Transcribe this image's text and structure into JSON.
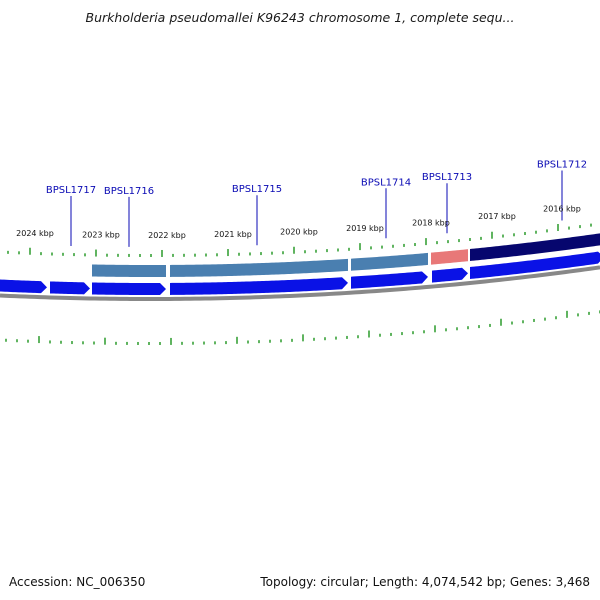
{
  "title": "Burkholderia pseudomallei K96243 chromosome 1, complete sequ...",
  "footer": {
    "accession": "Accession: NC_006350",
    "summary": "Topology: circular; Length: 4,074,542 bp; Genes: 3,468"
  },
  "scale_labels": [
    "2024 kbp",
    "2023 kbp",
    "2022 kbp",
    "2021 kbp",
    "2020 kbp",
    "2019 kbp",
    "2018 kbp",
    "2017 kbp",
    "2016 kbp"
  ],
  "gene_labels": [
    "BPSL1717",
    "BPSL1716",
    "BPSL1715",
    "BPSL1714",
    "BPSL1713",
    "BPSL1712"
  ],
  "colors": {
    "cds_arrow": "#0a12e6",
    "feature_steelblue": "#4a7fb0",
    "feature_salmon": "#e87878",
    "feature_navy": "#06066e",
    "ticks": "#2a9a2a",
    "backbone": "#888888",
    "gene_label": "#0a0ab4"
  }
}
